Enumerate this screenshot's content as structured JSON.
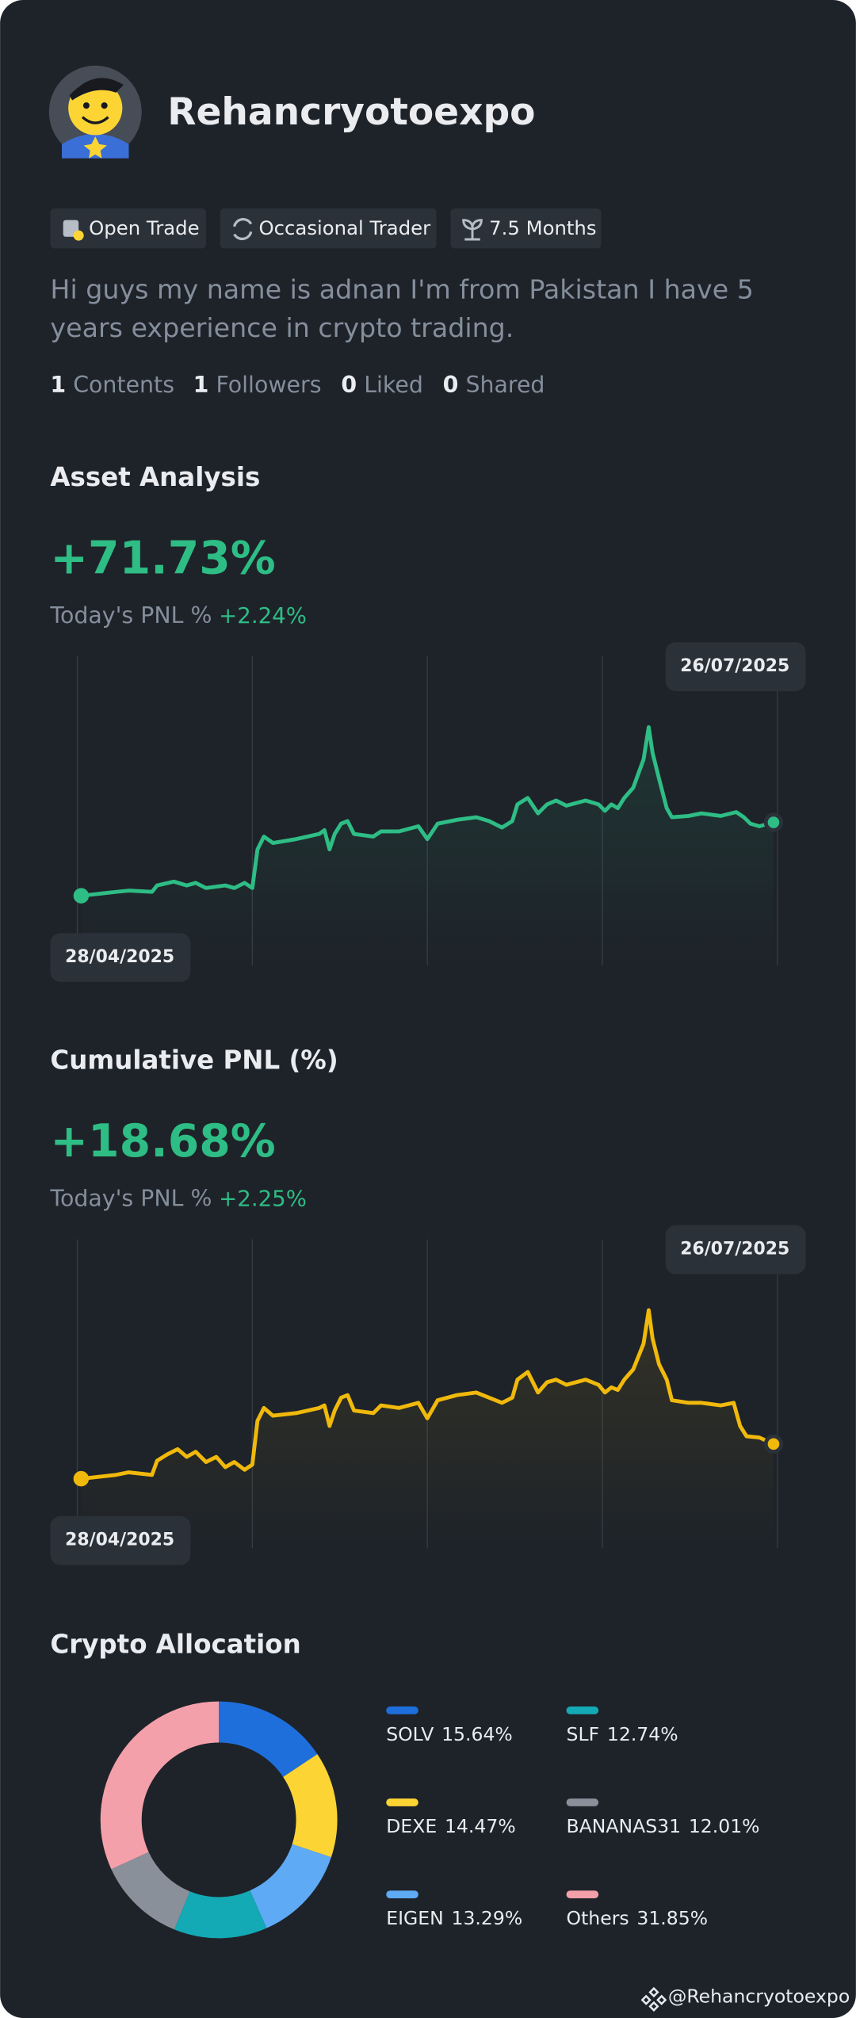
{
  "profile": {
    "name": "Rehancryotoexpo",
    "tags": [
      "Open Trade",
      "Occasional Trader",
      "7.5 Months"
    ],
    "bio": [
      "Hi guys my name is adnan I'm from Pakistan I have 5",
      "years experience in crypto trading."
    ],
    "stats": [
      {
        "count": 1,
        "label": "Contents"
      },
      {
        "count": 1,
        "label": "Followers"
      },
      {
        "count": 0,
        "label": "Liked"
      },
      {
        "count": 0,
        "label": "Shared"
      }
    ]
  },
  "asset_analysis": {
    "title": "Asset Analysis",
    "value": "+71.73%",
    "pnl_label": "Today's PNL %",
    "pnl_value": "+2.24%",
    "end_date": "26/07/2025",
    "start_date": "28/04/2025"
  },
  "cumulative_pnl": {
    "title": "Cumulative PNL (%)",
    "value": "+18.68%",
    "pnl_label": "Today's PNL %",
    "pnl_value": "+2.25%",
    "end_date": "26/07/2025",
    "start_date": "28/04/2025"
  },
  "chart_data": {
    "type": "pie",
    "title": "Crypto Allocation",
    "categories": [
      "SOLV",
      "DEXE",
      "EIGEN",
      "SLF",
      "BANANAS31",
      "Others"
    ],
    "values": [
      15.64,
      14.47,
      13.29,
      12.74,
      12.01,
      31.85
    ],
    "value_labels": [
      "15.64%",
      "14.47%",
      "13.29%",
      "12.74%",
      "12.01%",
      "31.85%"
    ],
    "colors": [
      "#1e6fdc",
      "#fcd535",
      "#5eaaf5",
      "#13a9b5",
      "#8a9099",
      "#f4a0ab"
    ]
  },
  "footer": {
    "handle": "@Rehancryotoexpo"
  }
}
